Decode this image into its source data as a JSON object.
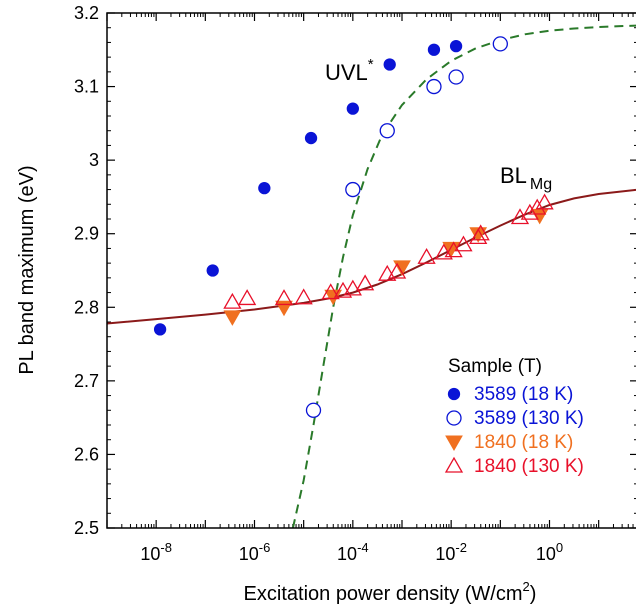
{
  "chart_data": {
    "type": "scatter",
    "xlabel": "Excitation power density (W/cm",
    "xlabel_sup": "2",
    "xlabel_end": ")",
    "ylabel": "PL band maximum (eV)",
    "xscale": "log",
    "xlim_exp": [
      -9,
      1.8
    ],
    "ylim": [
      2.5,
      3.2
    ],
    "y_ticks": [
      "2.5",
      "2.6",
      "2.7",
      "2.8",
      "2.9",
      "3",
      "3.1",
      "3.2"
    ],
    "x_ticks": [
      {
        "base": "10",
        "exp": "-8",
        "value": -8
      },
      {
        "base": "10",
        "exp": "-6",
        "value": -6
      },
      {
        "base": "10",
        "exp": "-4",
        "value": -4
      },
      {
        "base": "10",
        "exp": "-2",
        "value": -2
      },
      {
        "base": "10",
        "exp": "0",
        "value": 0
      }
    ],
    "legend_title": "Sample (T)",
    "legend_position": "bottom-right",
    "series": [
      {
        "name": "3589 (18 K)",
        "marker": "filled-circle",
        "color": "#0a14d6",
        "log_x": [
          -7.92,
          -6.85,
          -5.8,
          -4.85,
          -4.0,
          -3.25,
          -2.35,
          -1.9
        ],
        "y": [
          2.77,
          2.85,
          2.962,
          3.03,
          3.07,
          3.13,
          3.15,
          3.155
        ]
      },
      {
        "name": "3589 (130 K)",
        "marker": "open-circle",
        "color": "#0a14d6",
        "log_x": [
          -4.8,
          -4.0,
          -3.3,
          -2.35,
          -1.9,
          -1.0
        ],
        "y": [
          2.66,
          2.96,
          3.04,
          3.1,
          3.113,
          3.158
        ]
      },
      {
        "name": "1840 (18 K)",
        "marker": "filled-triangle-down",
        "color": "#f07020",
        "log_x": [
          -6.45,
          -5.4,
          -4.4,
          -3.0,
          -2.0,
          -1.45,
          -0.2
        ],
        "y": [
          2.787,
          2.8,
          2.815,
          2.855,
          2.88,
          2.9,
          2.925
        ]
      },
      {
        "name": "1840 (130 K)",
        "marker": "open-triangle-up",
        "color": "#e8102a",
        "log_x": [
          -6.45,
          -6.15,
          -5.4,
          -5.0,
          -4.45,
          -4.2,
          -4.0,
          -3.75,
          -3.3,
          -3.1,
          -2.5,
          -2.15,
          -1.95,
          -1.75,
          -1.45,
          -1.4,
          -0.6,
          -0.4,
          -0.25,
          -0.1
        ],
        "y": [
          2.807,
          2.812,
          2.812,
          2.813,
          2.82,
          2.822,
          2.825,
          2.832,
          2.845,
          2.848,
          2.868,
          2.874,
          2.877,
          2.885,
          2.895,
          2.9,
          2.922,
          2.928,
          2.935,
          2.942
        ]
      }
    ],
    "fit_curves": [
      {
        "style": "solid",
        "color": "#8b1a1a",
        "log_x": [
          -9,
          -8,
          -7,
          -6,
          -5,
          -4.5,
          -4,
          -3.5,
          -3,
          -2.5,
          -2,
          -1.5,
          -1,
          -0.5,
          0,
          0.5,
          1,
          1.8
        ],
        "y": [
          2.778,
          2.784,
          2.79,
          2.797,
          2.806,
          2.812,
          2.82,
          2.831,
          2.845,
          2.861,
          2.878,
          2.895,
          2.911,
          2.926,
          2.939,
          2.948,
          2.954,
          2.96
        ]
      },
      {
        "style": "dashed",
        "color": "#2a7a2a",
        "log_x": [
          -5.22,
          -5.0,
          -4.8,
          -4.6,
          -4.4,
          -4.2,
          -4.0,
          -3.7,
          -3.4,
          -3.0,
          -2.5,
          -2.0,
          -1.5,
          -1.0,
          -0.5,
          0.0,
          0.5,
          1.0,
          1.8
        ],
        "y": [
          2.5,
          2.565,
          2.64,
          2.72,
          2.8,
          2.868,
          2.925,
          2.988,
          3.035,
          3.075,
          3.11,
          3.135,
          3.152,
          3.163,
          3.171,
          3.176,
          3.179,
          3.181,
          3.183
        ]
      }
    ],
    "annotations": {
      "uvl": "UVL",
      "uvl_sup": "*",
      "bl": "BL",
      "bl_sub": "Mg"
    }
  }
}
